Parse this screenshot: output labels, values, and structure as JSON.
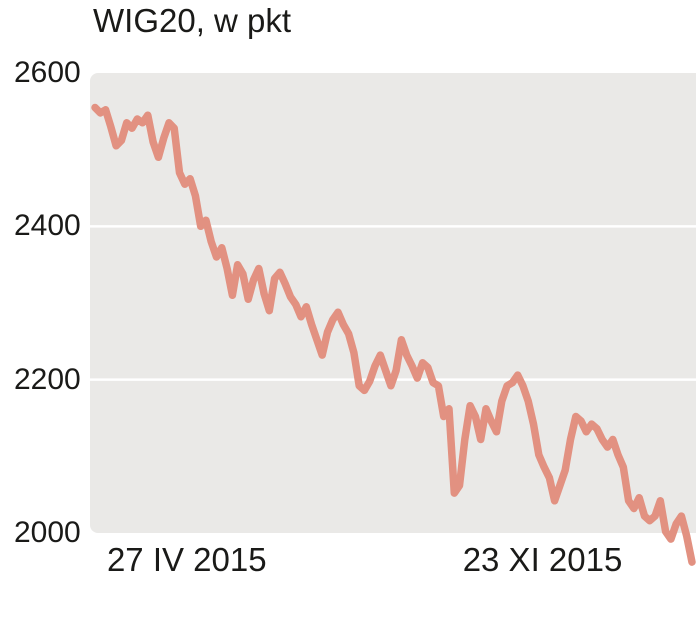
{
  "chart_data": {
    "type": "line",
    "title": "WIG20, w pkt",
    "ylabel": "pkt",
    "ylim": [
      2000,
      2600
    ],
    "yticks": [
      2600,
      2400,
      2200,
      2000
    ],
    "grid_values": [
      2400,
      2200
    ],
    "xtick_labels": [
      "27 IV 2015",
      "23 XI 2015"
    ],
    "xtick_pos": [
      0.028,
      0.615
    ],
    "grid": true,
    "legend": "none",
    "line_color": "#e29181",
    "panel_color": "#eae9e7",
    "text_color": "#1a1a18",
    "values": [
      2555,
      2548,
      2552,
      2530,
      2505,
      2512,
      2535,
      2528,
      2540,
      2535,
      2545,
      2510,
      2490,
      2515,
      2535,
      2528,
      2470,
      2455,
      2462,
      2440,
      2400,
      2408,
      2380,
      2360,
      2372,
      2345,
      2310,
      2350,
      2338,
      2305,
      2330,
      2345,
      2312,
      2290,
      2332,
      2340,
      2325,
      2308,
      2298,
      2282,
      2295,
      2272,
      2252,
      2232,
      2262,
      2278,
      2288,
      2272,
      2260,
      2235,
      2192,
      2186,
      2198,
      2218,
      2232,
      2212,
      2192,
      2212,
      2252,
      2232,
      2218,
      2202,
      2222,
      2216,
      2196,
      2192,
      2152,
      2162,
      2052,
      2062,
      2122,
      2166,
      2152,
      2122,
      2162,
      2146,
      2132,
      2172,
      2192,
      2196,
      2206,
      2192,
      2172,
      2142,
      2102,
      2086,
      2072,
      2042,
      2062,
      2082,
      2122,
      2152,
      2146,
      2132,
      2142,
      2136,
      2122,
      2112,
      2122,
      2102,
      2086,
      2042,
      2032,
      2046,
      2022,
      2016,
      2022,
      2042,
      2002,
      1992,
      2012,
      2022,
      1996,
      1962
    ]
  }
}
